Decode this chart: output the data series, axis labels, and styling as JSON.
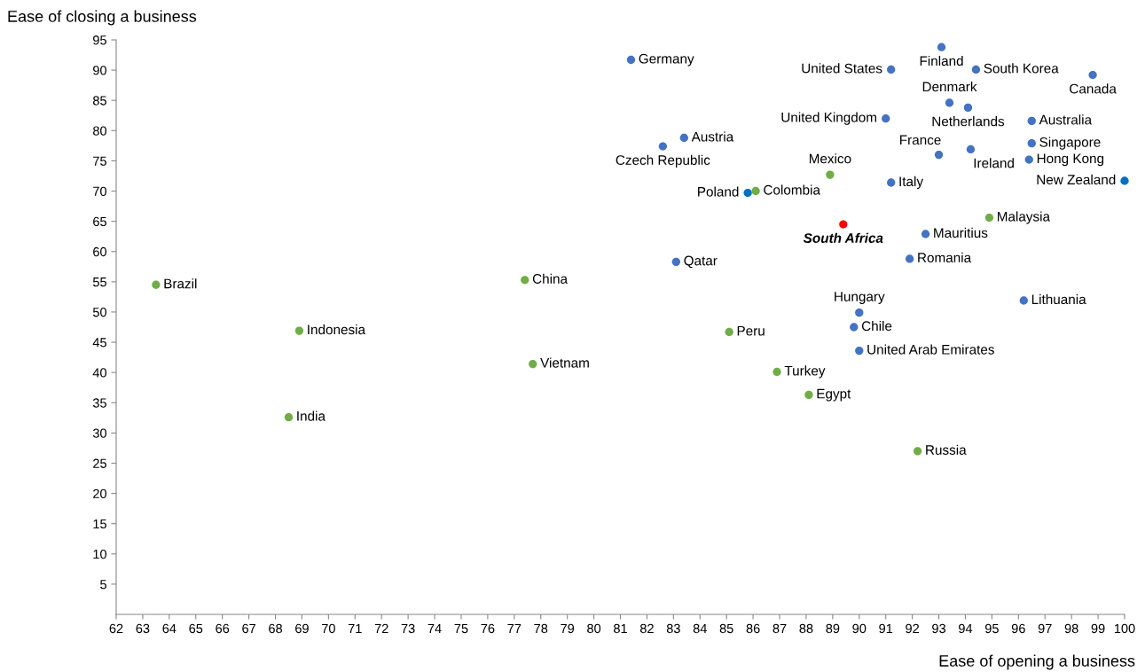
{
  "chart_data": {
    "type": "scatter",
    "xlabel": "Ease of opening a business",
    "ylabel": "Ease of closing a business",
    "xlim": [
      62,
      100
    ],
    "xticks": [
      62,
      63,
      64,
      65,
      66,
      67,
      68,
      69,
      70,
      71,
      72,
      73,
      74,
      75,
      76,
      77,
      78,
      79,
      80,
      81,
      82,
      83,
      84,
      85,
      86,
      87,
      88,
      89,
      90,
      91,
      92,
      93,
      94,
      95,
      96,
      97,
      98,
      99,
      100
    ],
    "ylim": [
      0,
      95
    ],
    "yticks": [
      5,
      10,
      15,
      20,
      25,
      30,
      35,
      40,
      45,
      50,
      55,
      60,
      65,
      70,
      75,
      80,
      85,
      90,
      95
    ],
    "grid": false,
    "marker": "circle",
    "series": [
      {
        "x": [
          81.4,
          82.6,
          83.4,
          93.1,
          91.2,
          94.4,
          98.8,
          93.4,
          94.1,
          91.0,
          96.5,
          93.0,
          94.2,
          96.5,
          96.4,
          100.0,
          91.2,
          85.8,
          86.1,
          88.9,
          89.4,
          94.9,
          92.5,
          91.9,
          83.1,
          63.5,
          77.4,
          96.2,
          90.0,
          89.8,
          68.9,
          85.1,
          90.0,
          77.7,
          86.9,
          88.1,
          68.5,
          92.2
        ],
        "values": [
          91.7,
          77.4,
          78.8,
          93.8,
          90.1,
          90.1,
          89.2,
          84.6,
          83.8,
          82.0,
          81.6,
          76.0,
          76.9,
          77.9,
          75.2,
          71.7,
          71.4,
          69.7,
          70.0,
          72.7,
          64.5,
          65.6,
          62.9,
          58.8,
          58.3,
          54.5,
          55.3,
          51.9,
          49.9,
          47.5,
          46.9,
          46.7,
          43.6,
          41.4,
          40.1,
          36.3,
          32.6,
          27.0
        ],
        "colors": [
          "#4472c4",
          "#4472c4",
          "#4472c4",
          "#4472c4",
          "#4472c4",
          "#4472c4",
          "#4472c4",
          "#4472c4",
          "#4472c4",
          "#4472c4",
          "#4472c4",
          "#4472c4",
          "#4472c4",
          "#4472c4",
          "#4472c4",
          "#0070c0",
          "#4472c4",
          "#0070c0",
          "#70ad47",
          "#70ad47",
          "#ff0000",
          "#70ad47",
          "#4472c4",
          "#4472c4",
          "#4472c4",
          "#70ad47",
          "#70ad47",
          "#4472c4",
          "#4472c4",
          "#4472c4",
          "#70ad47",
          "#70ad47",
          "#4472c4",
          "#70ad47",
          "#70ad47",
          "#70ad47",
          "#70ad47",
          "#70ad47"
        ]
      }
    ],
    "annotations": [
      {
        "text": "Germany",
        "x": 81.4,
        "y": 91.7
      },
      {
        "text": "Czech Republic",
        "x": 82.6,
        "y": 77.4
      },
      {
        "text": "Austria",
        "x": 83.4,
        "y": 78.8
      },
      {
        "text": "Finland",
        "x": 93.1,
        "y": 93.8
      },
      {
        "text": "United States",
        "x": 91.2,
        "y": 90.1
      },
      {
        "text": "South Korea",
        "x": 94.4,
        "y": 90.1
      },
      {
        "text": "Canada",
        "x": 98.8,
        "y": 89.2
      },
      {
        "text": "Denmark",
        "x": 93.4,
        "y": 84.6
      },
      {
        "text": "Netherlands",
        "x": 94.1,
        "y": 83.8
      },
      {
        "text": "United Kingdom",
        "x": 91.0,
        "y": 82.0
      },
      {
        "text": "Australia",
        "x": 96.5,
        "y": 81.6
      },
      {
        "text": "France",
        "x": 93.0,
        "y": 76.0
      },
      {
        "text": "Ireland",
        "x": 94.2,
        "y": 76.9
      },
      {
        "text": "Singapore",
        "x": 96.5,
        "y": 77.9
      },
      {
        "text": "Hong Kong",
        "x": 96.4,
        "y": 75.2
      },
      {
        "text": "New Zealand",
        "x": 100.0,
        "y": 71.7
      },
      {
        "text": "Italy",
        "x": 91.2,
        "y": 71.4
      },
      {
        "text": "Poland",
        "x": 85.8,
        "y": 69.7
      },
      {
        "text": "Colombia",
        "x": 86.1,
        "y": 70.0
      },
      {
        "text": "Mexico",
        "x": 88.9,
        "y": 72.7
      },
      {
        "text": "South Africa",
        "x": 89.4,
        "y": 64.5
      },
      {
        "text": "Malaysia",
        "x": 94.9,
        "y": 65.6
      },
      {
        "text": "Mauritius",
        "x": 92.5,
        "y": 62.9
      },
      {
        "text": "Romania",
        "x": 91.9,
        "y": 58.8
      },
      {
        "text": "Qatar",
        "x": 83.1,
        "y": 58.3
      },
      {
        "text": "Brazil",
        "x": 63.5,
        "y": 54.5
      },
      {
        "text": "China",
        "x": 77.4,
        "y": 55.3
      },
      {
        "text": "Lithuania",
        "x": 96.2,
        "y": 51.9
      },
      {
        "text": "Hungary",
        "x": 90.0,
        "y": 49.9
      },
      {
        "text": "Chile",
        "x": 89.8,
        "y": 47.5
      },
      {
        "text": "Indonesia",
        "x": 68.9,
        "y": 46.9
      },
      {
        "text": "Peru",
        "x": 85.1,
        "y": 46.7
      },
      {
        "text": "United Arab Emirates",
        "x": 90.0,
        "y": 43.6
      },
      {
        "text": "Vietnam",
        "x": 77.7,
        "y": 41.4
      },
      {
        "text": "Turkey",
        "x": 86.9,
        "y": 40.1
      },
      {
        "text": "Egypt",
        "x": 88.1,
        "y": 36.3
      },
      {
        "text": "India",
        "x": 68.5,
        "y": 32.6
      },
      {
        "text": "Russia",
        "x": 92.2,
        "y": 27.0
      }
    ]
  }
}
